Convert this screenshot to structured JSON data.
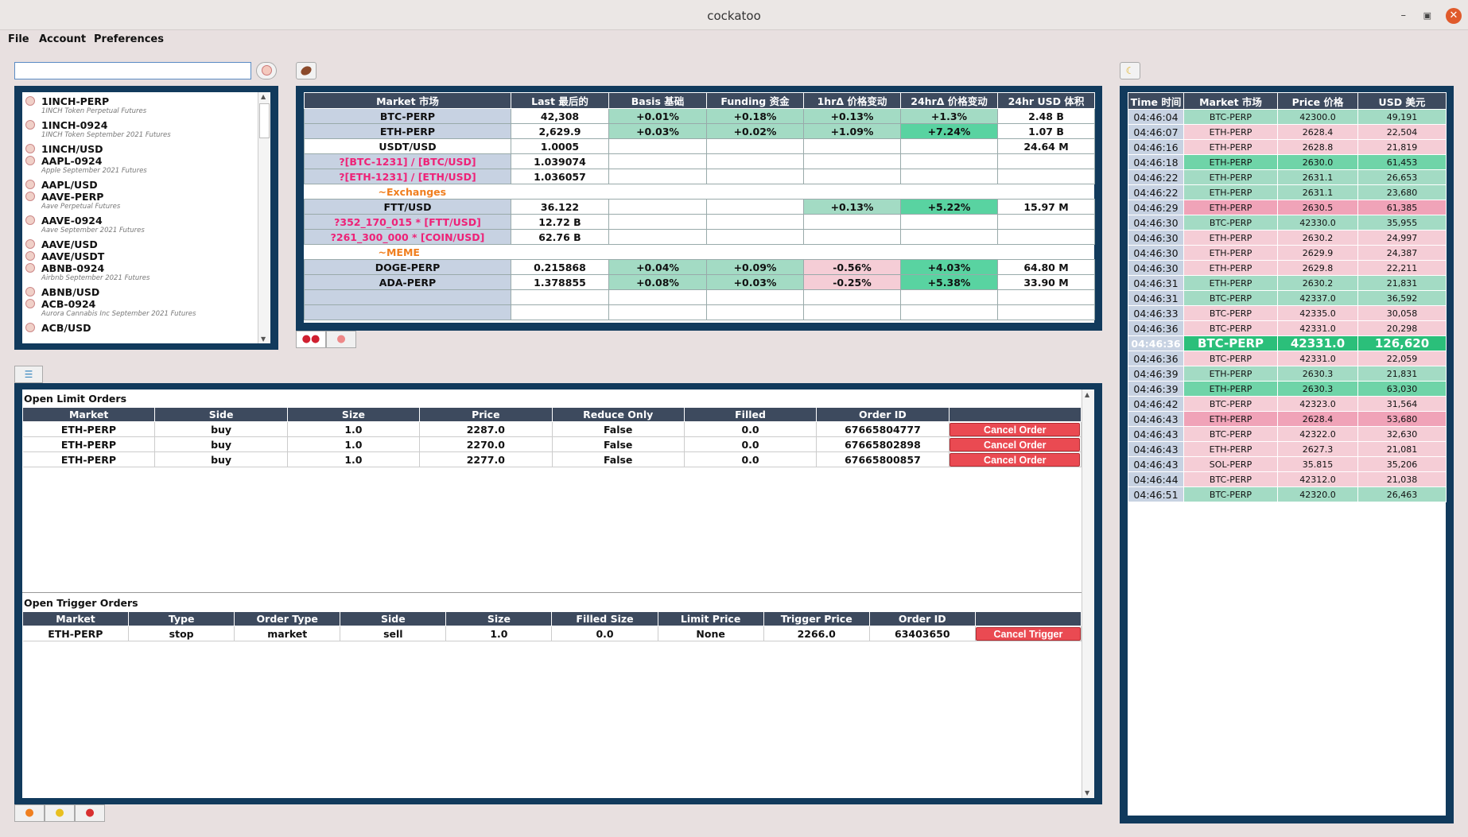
{
  "window": {
    "title": "cockatoo"
  },
  "menu": [
    "File",
    "Account",
    "Preferences"
  ],
  "search": {
    "value": "",
    "placeholder": ""
  },
  "market_list": [
    {
      "name": "1INCH-PERP",
      "desc": "1INCH Token Perpetual Futures"
    },
    {
      "name": "1INCH-0924",
      "desc": "1INCH Token September 2021 Futures"
    },
    {
      "name": "1INCH/USD",
      "desc": ""
    },
    {
      "name": "AAPL-0924",
      "desc": "Apple September 2021 Futures"
    },
    {
      "name": "AAPL/USD",
      "desc": ""
    },
    {
      "name": "AAVE-PERP",
      "desc": "Aave Perpetual Futures"
    },
    {
      "name": "AAVE-0924",
      "desc": "Aave September 2021 Futures"
    },
    {
      "name": "AAVE/USD",
      "desc": ""
    },
    {
      "name": "AAVE/USDT",
      "desc": ""
    },
    {
      "name": "ABNB-0924",
      "desc": "Airbnb September 2021 Futures"
    },
    {
      "name": "ABNB/USD",
      "desc": ""
    },
    {
      "name": "ACB-0924",
      "desc": "Aurora Cannabis Inc September 2021 Futures"
    },
    {
      "name": "ACB/USD",
      "desc": ""
    }
  ],
  "market_table": {
    "headers": [
      "Market 市场",
      "Last 最后的",
      "Basis 基础",
      "Funding 资金",
      "1hrΔ 价格变动",
      "24hrΔ 价格变动",
      "24hr USD 体积"
    ],
    "rows": [
      {
        "kind": "row",
        "cells": [
          "BTC-PERP",
          "42,308",
          "+0.01%",
          "+0.18%",
          "+0.13%",
          "+1.3%",
          "2.48 B"
        ],
        "colors": [
          "m",
          "",
          "g1",
          "g1",
          "g1",
          "g1",
          ""
        ]
      },
      {
        "kind": "row",
        "cells": [
          "ETH-PERP",
          "2,629.9",
          "+0.03%",
          "+0.02%",
          "+1.09%",
          "+7.24%",
          "1.07 B"
        ],
        "colors": [
          "m",
          "",
          "g1",
          "g1",
          "g1",
          "g2",
          ""
        ]
      },
      {
        "kind": "row",
        "cells": [
          "USDT/USD",
          "1.0005",
          "",
          "",
          "",
          "",
          "24.64 M"
        ],
        "colors": [
          "",
          "",
          "",
          "",
          "",
          "",
          ""
        ]
      },
      {
        "kind": "pinkrow",
        "cells": [
          "?[BTC-1231] / [BTC/USD]",
          "1.039074",
          "",
          "",
          "",
          "",
          ""
        ],
        "colors": [
          "m",
          "",
          "",
          "",
          "",
          "",
          ""
        ]
      },
      {
        "kind": "pinkrow",
        "cells": [
          "?[ETH-1231] / [ETH/USD]",
          "1.036057",
          "",
          "",
          "",
          "",
          ""
        ],
        "colors": [
          "m",
          "",
          "",
          "",
          "",
          "",
          ""
        ]
      },
      {
        "kind": "section",
        "cells": [
          "~Exchanges"
        ]
      },
      {
        "kind": "row",
        "cells": [
          "FTT/USD",
          "36.122",
          "",
          "",
          "+0.13%",
          "+5.22%",
          "15.97 M"
        ],
        "colors": [
          "m",
          "",
          "",
          "",
          "g1",
          "g2",
          ""
        ]
      },
      {
        "kind": "pinkrow",
        "cells": [
          "?352_170_015 * [FTT/USD]",
          "12.72 B",
          "",
          "",
          "",
          "",
          ""
        ],
        "colors": [
          "m",
          "",
          "",
          "",
          "",
          "",
          ""
        ]
      },
      {
        "kind": "pinkrow",
        "cells": [
          "?261_300_000 * [COIN/USD]",
          "62.76 B",
          "",
          "",
          "",
          "",
          ""
        ],
        "colors": [
          "m",
          "",
          "",
          "",
          "",
          "",
          ""
        ]
      },
      {
        "kind": "section",
        "cells": [
          "~MEME"
        ]
      },
      {
        "kind": "row",
        "cells": [
          "DOGE-PERP",
          "0.215868",
          "+0.04%",
          "+0.09%",
          "-0.56%",
          "+4.03%",
          "64.80 M"
        ],
        "colors": [
          "m",
          "",
          "g1",
          "g1",
          "r1",
          "g2",
          ""
        ]
      },
      {
        "kind": "row",
        "cells": [
          "ADA-PERP",
          "1.378855",
          "+0.08%",
          "+0.03%",
          "-0.25%",
          "+5.38%",
          "33.90 M"
        ],
        "colors": [
          "m",
          "",
          "g1",
          "g1",
          "r1",
          "g2",
          ""
        ]
      }
    ]
  },
  "limit_orders": {
    "title": "Open Limit Orders",
    "headers": [
      "Market",
      "Side",
      "Size",
      "Price",
      "Reduce Only",
      "Filled",
      "Order ID",
      ""
    ],
    "rows": [
      [
        "ETH-PERP",
        "buy",
        "1.0",
        "2287.0",
        "False",
        "0.0",
        "67665804777"
      ],
      [
        "ETH-PERP",
        "buy",
        "1.0",
        "2270.0",
        "False",
        "0.0",
        "67665802898"
      ],
      [
        "ETH-PERP",
        "buy",
        "1.0",
        "2277.0",
        "False",
        "0.0",
        "67665800857"
      ]
    ],
    "cancel_label": "Cancel Order"
  },
  "trigger_orders": {
    "title": "Open Trigger Orders",
    "headers": [
      "Market",
      "Type",
      "Order Type",
      "Side",
      "Size",
      "Filled Size",
      "Limit Price",
      "Trigger Price",
      "Order ID",
      ""
    ],
    "rows": [
      [
        "ETH-PERP",
        "stop",
        "market",
        "sell",
        "1.0",
        "0.0",
        "None",
        "2266.0",
        "63403650"
      ]
    ],
    "cancel_label": "Cancel Trigger"
  },
  "fills": {
    "headers": [
      "Time 时间",
      "Market 市场",
      "Price 价格",
      "USD 美元"
    ],
    "rows": [
      {
        "t": "04:46:04",
        "m": "BTC-PERP",
        "p": "42300.0",
        "u": "49,191",
        "c": "gr"
      },
      {
        "t": "04:46:07",
        "m": "ETH-PERP",
        "p": "2628.4",
        "u": "22,504",
        "c": "pr"
      },
      {
        "t": "04:46:16",
        "m": "ETH-PERP",
        "p": "2628.8",
        "u": "21,819",
        "c": "pr"
      },
      {
        "t": "04:46:18",
        "m": "ETH-PERP",
        "p": "2630.0",
        "u": "61,453",
        "c": "gr2"
      },
      {
        "t": "04:46:22",
        "m": "ETH-PERP",
        "p": "2631.1",
        "u": "26,653",
        "c": "gr"
      },
      {
        "t": "04:46:22",
        "m": "ETH-PERP",
        "p": "2631.1",
        "u": "23,680",
        "c": "gr"
      },
      {
        "t": "04:46:29",
        "m": "ETH-PERP",
        "p": "2630.5",
        "u": "61,385",
        "c": "pr2"
      },
      {
        "t": "04:46:30",
        "m": "BTC-PERP",
        "p": "42330.0",
        "u": "35,955",
        "c": "gr"
      },
      {
        "t": "04:46:30",
        "m": "ETH-PERP",
        "p": "2630.2",
        "u": "24,997",
        "c": "pr"
      },
      {
        "t": "04:46:30",
        "m": "ETH-PERP",
        "p": "2629.9",
        "u": "24,387",
        "c": "pr"
      },
      {
        "t": "04:46:30",
        "m": "ETH-PERP",
        "p": "2629.8",
        "u": "22,211",
        "c": "pr"
      },
      {
        "t": "04:46:31",
        "m": "ETH-PERP",
        "p": "2630.2",
        "u": "21,831",
        "c": "gr"
      },
      {
        "t": "04:46:31",
        "m": "BTC-PERP",
        "p": "42337.0",
        "u": "36,592",
        "c": "gr"
      },
      {
        "t": "04:46:33",
        "m": "BTC-PERP",
        "p": "42335.0",
        "u": "30,058",
        "c": "pr"
      },
      {
        "t": "04:46:36",
        "m": "BTC-PERP",
        "p": "42331.0",
        "u": "20,298",
        "c": "pr"
      },
      {
        "t": "04:46:36",
        "m": "BTC-PERP",
        "p": "42331.0",
        "u": "126,620",
        "c": "big"
      },
      {
        "t": "04:46:36",
        "m": "BTC-PERP",
        "p": "42331.0",
        "u": "22,059",
        "c": "pr"
      },
      {
        "t": "04:46:39",
        "m": "ETH-PERP",
        "p": "2630.3",
        "u": "21,831",
        "c": "gr"
      },
      {
        "t": "04:46:39",
        "m": "ETH-PERP",
        "p": "2630.3",
        "u": "63,030",
        "c": "gr2"
      },
      {
        "t": "04:46:42",
        "m": "BTC-PERP",
        "p": "42323.0",
        "u": "31,564",
        "c": "pr"
      },
      {
        "t": "04:46:43",
        "m": "ETH-PERP",
        "p": "2628.4",
        "u": "53,680",
        "c": "pr2"
      },
      {
        "t": "04:46:43",
        "m": "BTC-PERP",
        "p": "42322.0",
        "u": "32,630",
        "c": "pr"
      },
      {
        "t": "04:46:43",
        "m": "ETH-PERP",
        "p": "2627.3",
        "u": "21,081",
        "c": "pr"
      },
      {
        "t": "04:46:43",
        "m": "SOL-PERP",
        "p": "35.815",
        "u": "35,206",
        "c": "pr"
      },
      {
        "t": "04:46:44",
        "m": "BTC-PERP",
        "p": "42312.0",
        "u": "21,038",
        "c": "pr"
      },
      {
        "t": "04:46:51",
        "m": "BTC-PERP",
        "p": "42320.0",
        "u": "26,463",
        "c": "gr"
      }
    ]
  },
  "icons": {
    "search_btn": "coin-icon",
    "market_btn": "potato-icon",
    "fills_btn": "banana-icon",
    "tab_cherries": "cherries-icon",
    "tab_orders": "cherry-icon",
    "tab_filter": "filter-icon",
    "bottom_tabs": [
      "orange-icon",
      "lemon-icon",
      "apple-icon"
    ]
  }
}
